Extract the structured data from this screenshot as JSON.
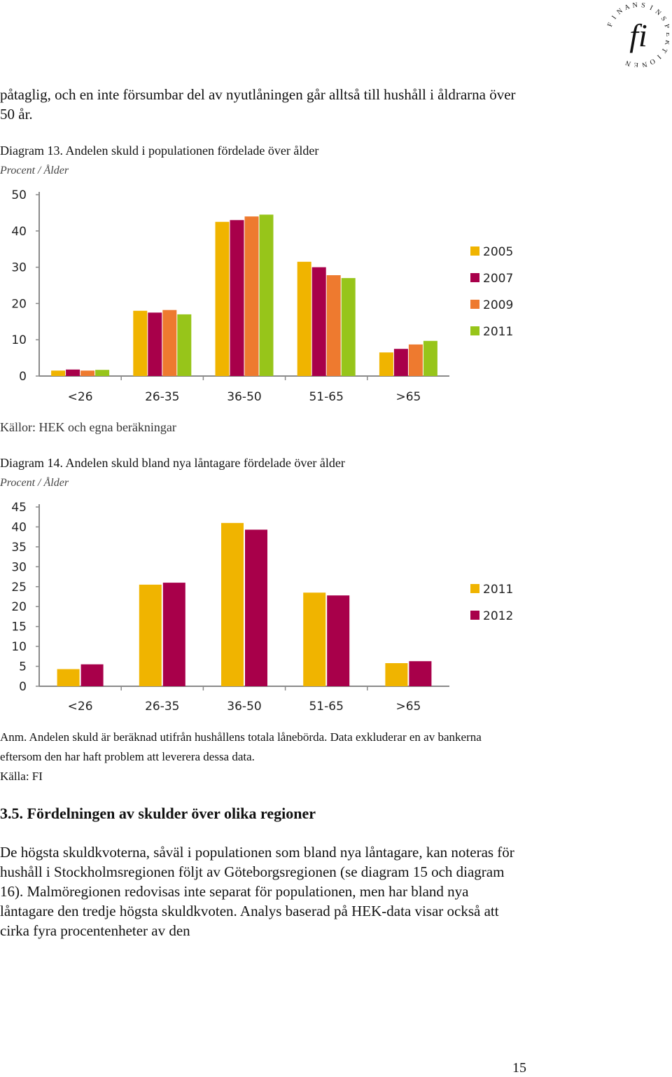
{
  "header": {
    "logo_letters": "FINANSINSPEKTIONEN",
    "logo_mark": "fi"
  },
  "paragraph_top": "påtaglig, och en inte försumbar del av nyutlåningen går alltså till hushåll i åldrarna över 50 år.",
  "diagram13": {
    "caption": "Diagram 13. Andelen skuld i populationen fördelade över ålder",
    "subtitle": "Procent / Ålder",
    "source": "Källor: HEK och egna beräkningar"
  },
  "diagram14": {
    "caption": "Diagram 14. Andelen skuld bland nya låntagare fördelade över ålder",
    "subtitle": "Procent / Ålder",
    "note": "Anm. Andelen skuld är beräknad utifrån hushållens totala lånebörda. Data exkluderar en av bankerna eftersom den har haft problem att leverera dessa data.",
    "source": "Källa: FI"
  },
  "section": {
    "heading": "3.5. Fördelningen av skulder över olika regioner",
    "body": "De högsta skuldkvoterna, såväl i populationen som bland nya låntagare, kan noteras för hushåll i Stockholmsregionen följt av Göteborgsregionen (se diagram 15 och diagram 16). Malmöregionen redovisas inte separat för populationen, men har bland nya låntagare den tredje högsta skuldkvoten. Analys baserad på HEK-data visar också att cirka fyra procentenheter av den"
  },
  "page_number": "15",
  "chart_data": [
    {
      "type": "bar",
      "categories": [
        "<26",
        "26-35",
        "36-50",
        "51-65",
        ">65"
      ],
      "series": [
        {
          "name": "2005",
          "color": "#F0B400",
          "values": [
            1.5,
            18,
            42.5,
            31.5,
            6.5
          ]
        },
        {
          "name": "2007",
          "color": "#A8004A",
          "values": [
            1.8,
            17.5,
            43,
            30,
            7.5
          ]
        },
        {
          "name": "2009",
          "color": "#EE7A2F",
          "values": [
            1.5,
            18.2,
            44,
            27.8,
            8.7
          ]
        },
        {
          "name": "2011",
          "color": "#97C51A",
          "values": [
            1.7,
            17,
            44.5,
            27,
            9.7
          ]
        }
      ],
      "ylim": [
        0,
        50
      ],
      "yticks": [
        0,
        10,
        20,
        30,
        40,
        50
      ],
      "grid": false,
      "legend": "right"
    },
    {
      "type": "bar",
      "categories": [
        "<26",
        "26-35",
        "36-50",
        "51-65",
        ">65"
      ],
      "series": [
        {
          "name": "2011",
          "color": "#F0B400",
          "values": [
            4.3,
            25.5,
            41,
            23.5,
            5.8
          ]
        },
        {
          "name": "2012",
          "color": "#A8004A",
          "values": [
            5.5,
            26,
            39.3,
            22.8,
            6.3
          ]
        }
      ],
      "ylim": [
        0,
        45
      ],
      "yticks": [
        0,
        5,
        10,
        15,
        20,
        25,
        30,
        35,
        40,
        45
      ],
      "grid": false,
      "legend": "right"
    }
  ]
}
